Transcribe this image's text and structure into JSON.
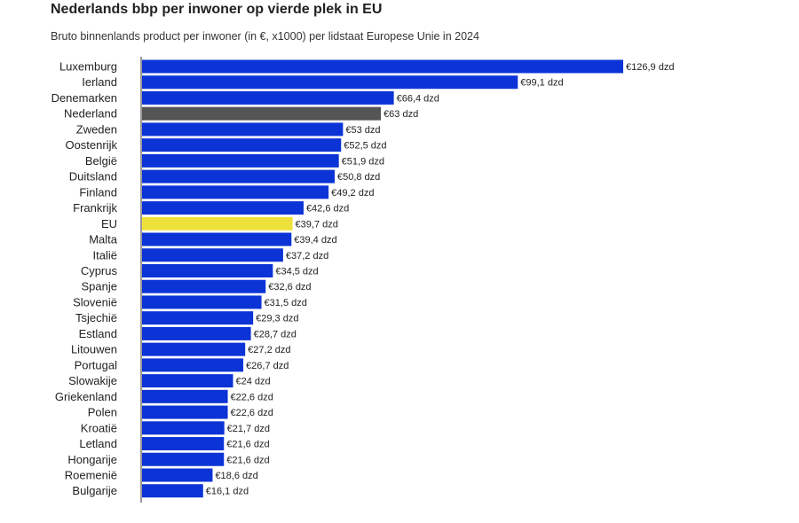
{
  "chart_data": {
    "type": "bar",
    "orientation": "horizontal",
    "title": "Nederlands bbp per inwoner op vierde plek in EU",
    "subtitle": "Bruto binnenlands product per inwoner (in €, x1000) per lidstaat Europese Unie in 2024",
    "xlabel": "",
    "ylabel": "",
    "xlim": [
      0,
      126.9
    ],
    "categories": [
      "Luxemburg",
      "Ierland",
      "Denemarken",
      "Nederland",
      "Zweden",
      "Oostenrijk",
      "België",
      "Duitsland",
      "Finland",
      "Frankrijk",
      "EU",
      "Malta",
      "Italië",
      "Cyprus",
      "Spanje",
      "Slovenië",
      "Tsjechië",
      "Estland",
      "Litouwen",
      "Portugal",
      "Slowakije",
      "Griekenland",
      "Polen",
      "Kroatië",
      "Letland",
      "Hongarije",
      "Roemenië",
      "Bulgarije"
    ],
    "values": [
      126.9,
      99.1,
      66.4,
      63,
      53,
      52.5,
      51.9,
      50.8,
      49.2,
      42.6,
      39.7,
      39.4,
      37.2,
      34.5,
      32.6,
      31.5,
      29.3,
      28.7,
      27.2,
      26.7,
      24,
      22.6,
      22.6,
      21.7,
      21.6,
      21.6,
      18.6,
      16.1
    ],
    "value_labels": [
      "€126,9 dzd",
      "€99,1 dzd",
      "€66,4 dzd",
      "€63 dzd",
      "€53 dzd",
      "€52,5 dzd",
      "€51,9 dzd",
      "€50,8 dzd",
      "€49,2 dzd",
      "€42,6 dzd",
      "€39,7 dzd",
      "€39,4 dzd",
      "€37,2 dzd",
      "€34,5 dzd",
      "€32,6 dzd",
      "€31,5 dzd",
      "€29,3 dzd",
      "€28,7 dzd",
      "€27,2 dzd",
      "€26,7 dzd",
      "€24 dzd",
      "€22,6 dzd",
      "€22,6 dzd",
      "€21,7 dzd",
      "€21,6 dzd",
      "€21,6 dzd",
      "€18,6 dzd",
      "€16,1 dzd"
    ],
    "grid": false,
    "colors": {
      "default": "#0b33d6",
      "highlight_nl": "#555555",
      "highlight_eu": "#eee23a",
      "axis": "#333333"
    },
    "highlights": {
      "Nederland": "highlight_nl",
      "EU": "highlight_eu"
    }
  }
}
